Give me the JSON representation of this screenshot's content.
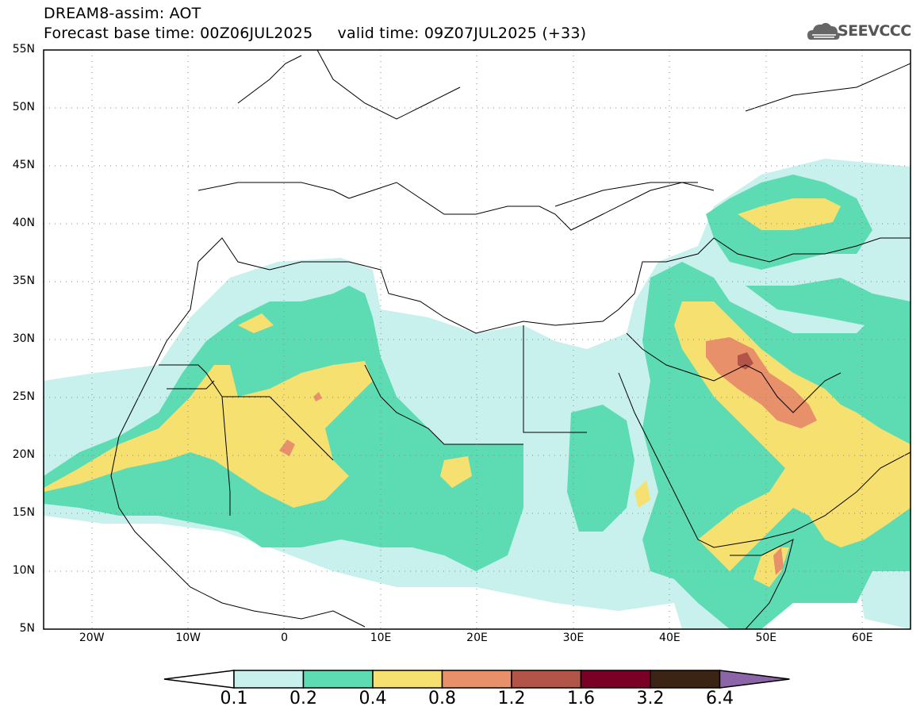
{
  "header": {
    "line1": "DREAM8-assim: AOT",
    "line2": "Forecast base time: 00Z06JUL2025     valid time: 09Z07JUL2025 (+33)"
  },
  "logo": {
    "text": "SEEVCCC",
    "icon": "cloud-icon"
  },
  "axes": {
    "lat_labels": [
      "55N",
      "50N",
      "45N",
      "40N",
      "35N",
      "30N",
      "25N",
      "20N",
      "15N",
      "10N",
      "5N"
    ],
    "lon_labels": [
      "20W",
      "10W",
      "0",
      "10E",
      "20E",
      "30E",
      "40E",
      "50E",
      "60E"
    ],
    "lat_range": [
      5,
      55
    ],
    "lon_range": [
      -25,
      65
    ]
  },
  "colorbar": {
    "labels": [
      "0.1",
      "0.2",
      "0.4",
      "0.8",
      "1.2",
      "1.6",
      "3.2",
      "6.4"
    ],
    "colors": [
      "#ffffff",
      "#c8f0ec",
      "#5ddcb4",
      "#f5e070",
      "#e8906a",
      "#b25548",
      "#7a0026",
      "#3c2415",
      "#8c64a8"
    ]
  }
}
